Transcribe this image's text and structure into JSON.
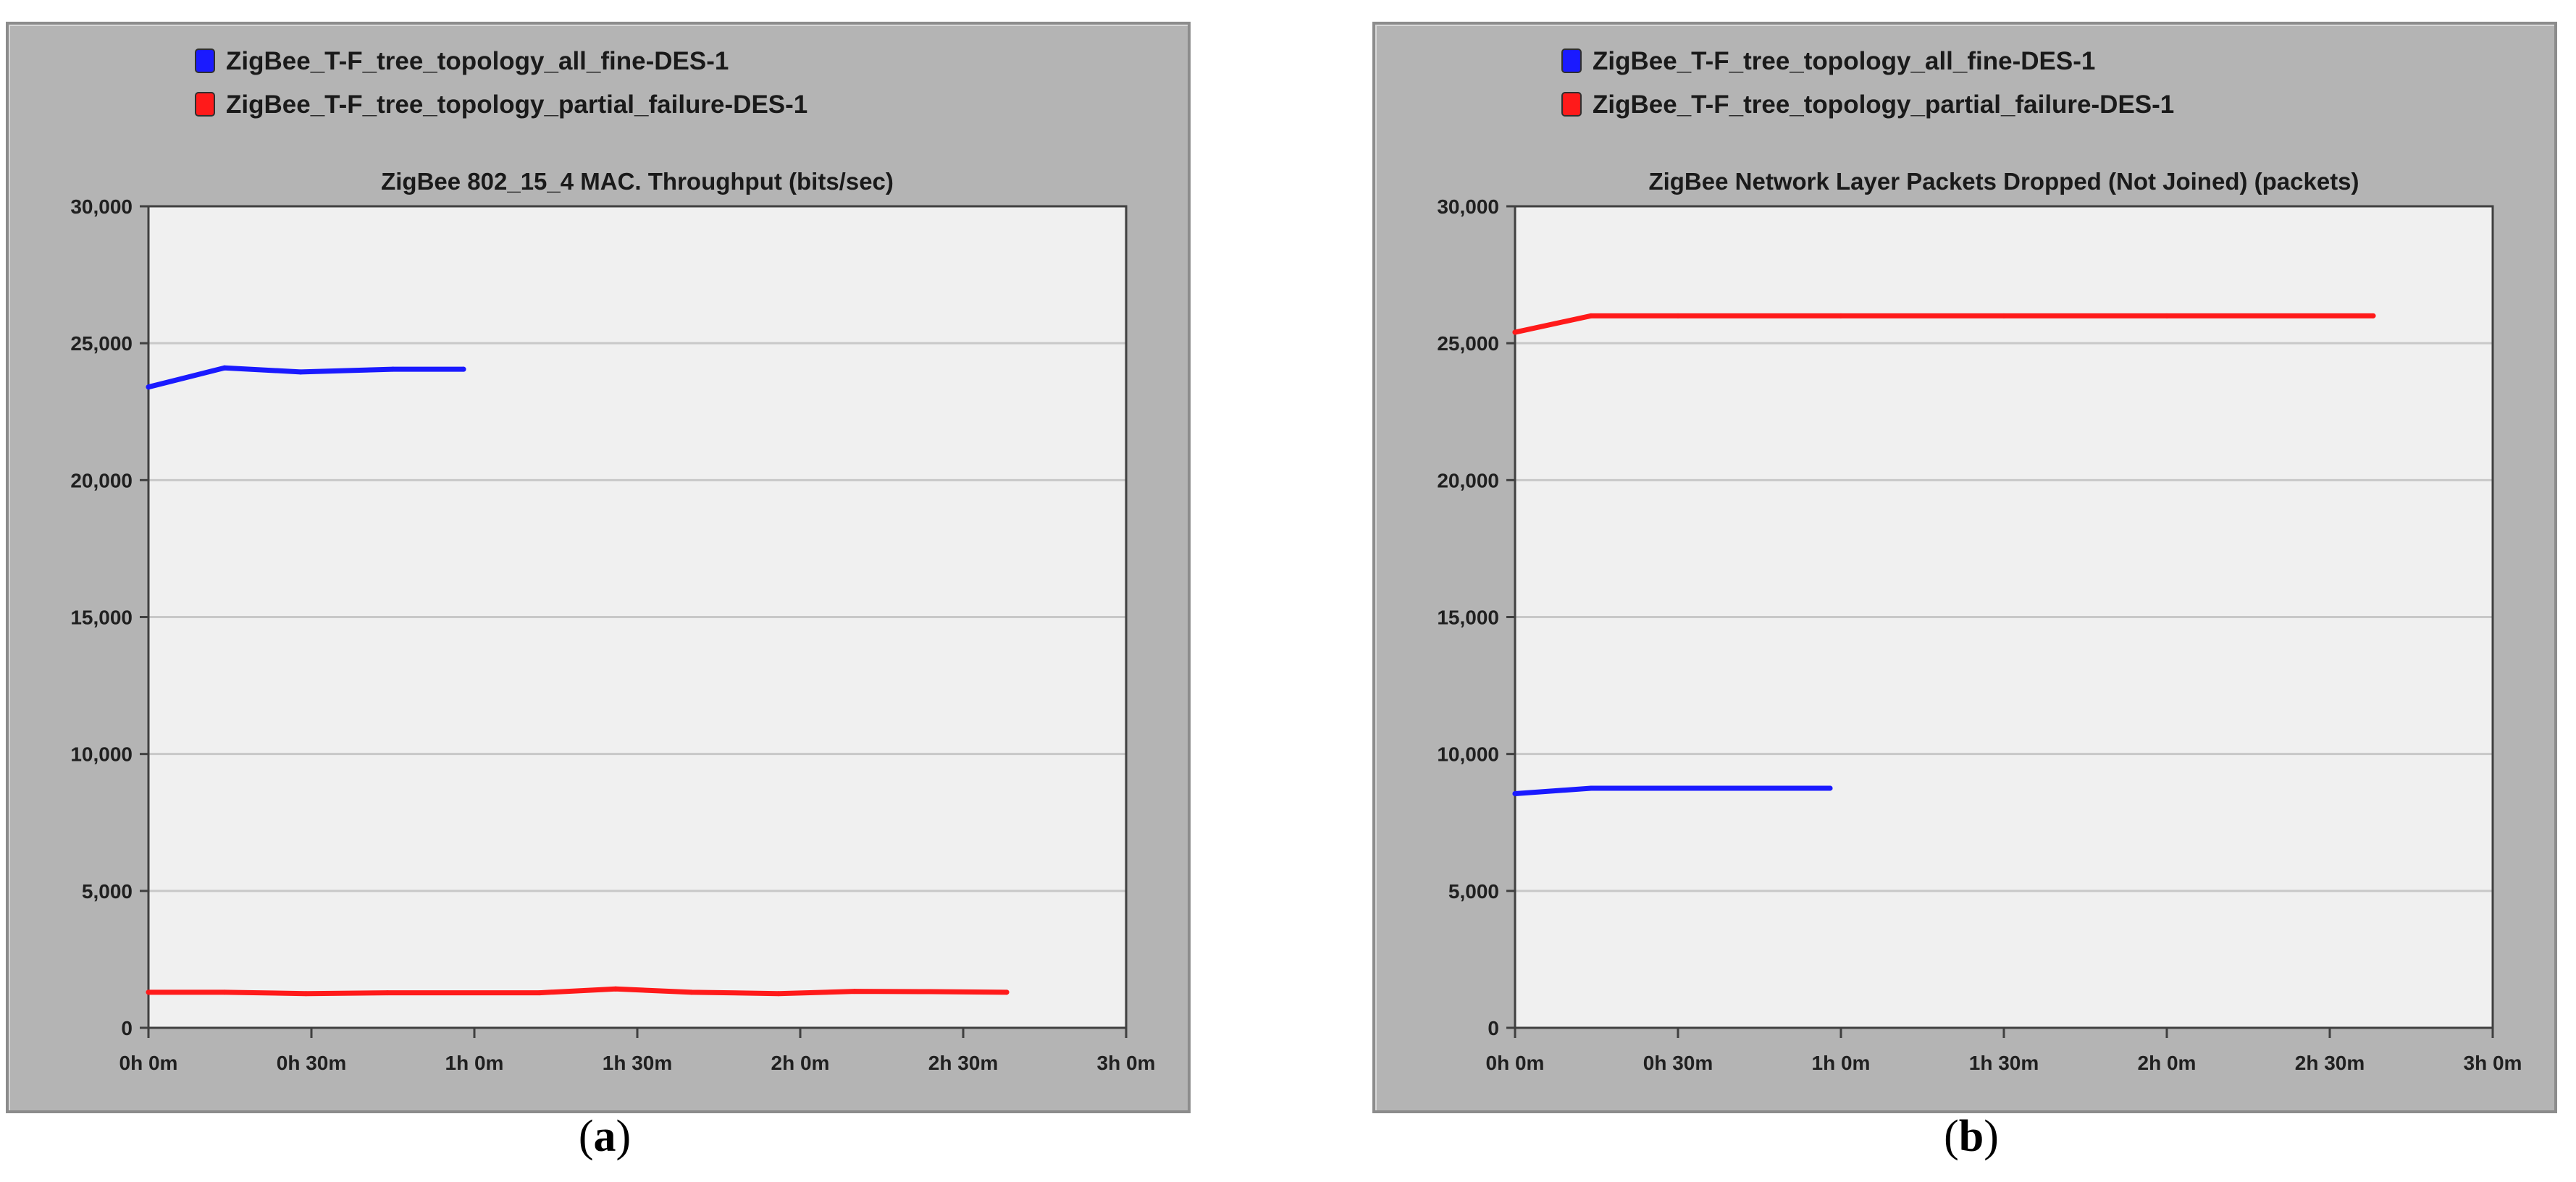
{
  "chart_data": [
    {
      "type": "line",
      "title": "ZigBee 802_15_4 MAC. Throughput (bits/sec)",
      "caption_letter": "a",
      "xlabel": "",
      "ylabel": "",
      "x_unit": "minutes",
      "xlim": [
        0,
        180
      ],
      "ylim": [
        0,
        30000
      ],
      "x_ticks": [
        {
          "value": 0,
          "label": "0h 0m"
        },
        {
          "value": 30,
          "label": "0h 30m"
        },
        {
          "value": 60,
          "label": "1h 0m"
        },
        {
          "value": 90,
          "label": "1h 30m"
        },
        {
          "value": 120,
          "label": "2h 0m"
        },
        {
          "value": 150,
          "label": "2h 30m"
        },
        {
          "value": 180,
          "label": "3h 0m"
        }
      ],
      "y_ticks": [
        {
          "value": 0,
          "label": "0"
        },
        {
          "value": 5000,
          "label": "5,000"
        },
        {
          "value": 10000,
          "label": "10,000"
        },
        {
          "value": 15000,
          "label": "15,000"
        },
        {
          "value": 20000,
          "label": "20,000"
        },
        {
          "value": 25000,
          "label": "25,000"
        },
        {
          "value": 30000,
          "label": "30,000"
        }
      ],
      "grid": true,
      "legend_position": "top-left",
      "series": [
        {
          "name": "ZigBee_T-F_tree_topology_all_fine-DES-1",
          "color": "#1a1aff",
          "points": [
            [
              0,
              23400
            ],
            [
              14,
              24100
            ],
            [
              28,
              23950
            ],
            [
              45,
              24050
            ],
            [
              58,
              24050
            ]
          ]
        },
        {
          "name": "ZigBee_T-F_tree_topology_partial_failure-DES-1",
          "color": "#ff1a1a",
          "points": [
            [
              0,
              1300
            ],
            [
              14,
              1300
            ],
            [
              29,
              1250
            ],
            [
              44,
              1280
            ],
            [
              72,
              1280
            ],
            [
              86,
              1420
            ],
            [
              100,
              1300
            ],
            [
              116,
              1250
            ],
            [
              130,
              1330
            ],
            [
              144,
              1320
            ],
            [
              158,
              1300
            ]
          ]
        }
      ]
    },
    {
      "type": "line",
      "title": "ZigBee Network Layer Packets Dropped (Not Joined) (packets)",
      "caption_letter": "b",
      "xlabel": "",
      "ylabel": "",
      "x_unit": "minutes",
      "xlim": [
        0,
        180
      ],
      "ylim": [
        0,
        30000
      ],
      "x_ticks": [
        {
          "value": 0,
          "label": "0h 0m"
        },
        {
          "value": 30,
          "label": "0h 30m"
        },
        {
          "value": 60,
          "label": "1h 0m"
        },
        {
          "value": 90,
          "label": "1h 30m"
        },
        {
          "value": 120,
          "label": "2h 0m"
        },
        {
          "value": 150,
          "label": "2h 30m"
        },
        {
          "value": 180,
          "label": "3h 0m"
        }
      ],
      "y_ticks": [
        {
          "value": 0,
          "label": "0"
        },
        {
          "value": 5000,
          "label": "5,000"
        },
        {
          "value": 10000,
          "label": "10,000"
        },
        {
          "value": 15000,
          "label": "15,000"
        },
        {
          "value": 20000,
          "label": "20,000"
        },
        {
          "value": 25000,
          "label": "25,000"
        },
        {
          "value": 30000,
          "label": "30,000"
        }
      ],
      "grid": true,
      "legend_position": "top-left",
      "series": [
        {
          "name": "ZigBee_T-F_tree_topology_all_fine-DES-1",
          "color": "#1a1aff",
          "points": [
            [
              0,
              8550
            ],
            [
              14,
              8750
            ],
            [
              30,
              8750
            ],
            [
              58,
              8750
            ]
          ]
        },
        {
          "name": "ZigBee_T-F_tree_topology_partial_failure-DES-1",
          "color": "#ff1a1a",
          "points": [
            [
              0,
              25400
            ],
            [
              14,
              26000
            ],
            [
              30,
              26000
            ],
            [
              60,
              26000
            ],
            [
              90,
              26000
            ],
            [
              120,
              26000
            ],
            [
              158,
              26000
            ]
          ]
        }
      ]
    }
  ]
}
